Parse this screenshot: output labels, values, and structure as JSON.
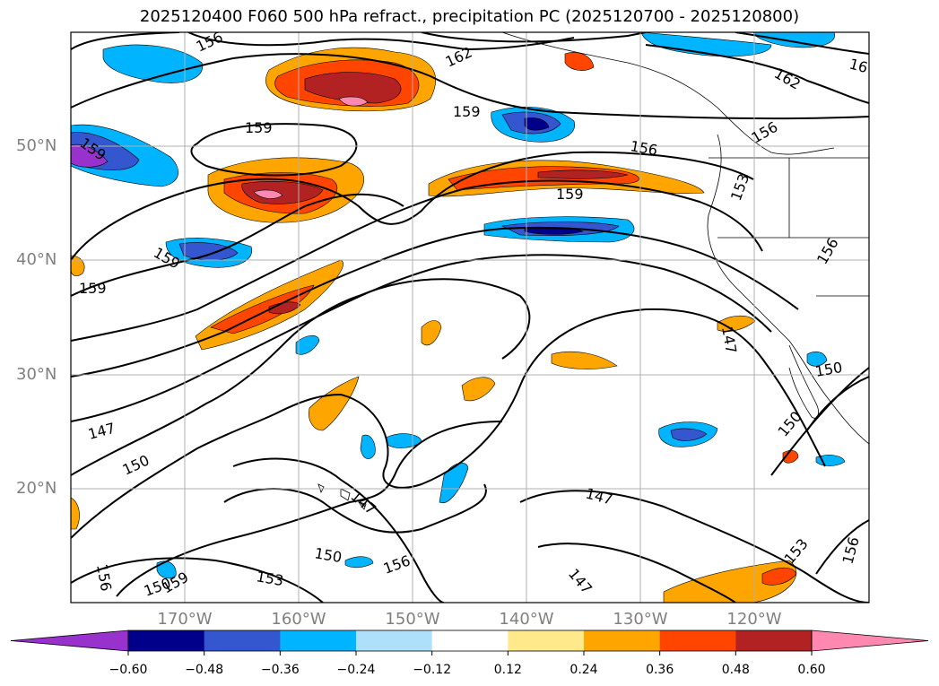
{
  "title": "2025120400 F060 500 hPa refract., precipitation PC (2025120700 - 2025120800)",
  "lat_labels": [
    "50°N",
    "40°N",
    "30°N",
    "20°N"
  ],
  "lon_labels": [
    "170°W",
    "160°W",
    "150°W",
    "140°W",
    "130°W",
    "120°W"
  ],
  "contour_labels": [
    "156",
    "162",
    "159",
    "156",
    "162",
    "16",
    "159",
    "159",
    "159",
    "159",
    "156",
    "159",
    "147",
    "150",
    "147",
    "150",
    "156",
    "153",
    "156",
    "150",
    "147",
    "150",
    "150",
    "153",
    "156",
    "159",
    "147",
    "153",
    "147",
    "156"
  ],
  "colorbar": {
    "ticks": [
      "−0.60",
      "−0.48",
      "−0.36",
      "−0.24",
      "−0.12",
      "0.12",
      "0.24",
      "0.36",
      "0.48",
      "0.60"
    ],
    "colors": [
      "#9932cc",
      "#00008b",
      "#3456cf",
      "#00b4ff",
      "#aee0fb",
      "#ffffff",
      "#ffe98a",
      "#ffa500",
      "#ff4500",
      "#b22222",
      "#ff88b0"
    ]
  }
}
